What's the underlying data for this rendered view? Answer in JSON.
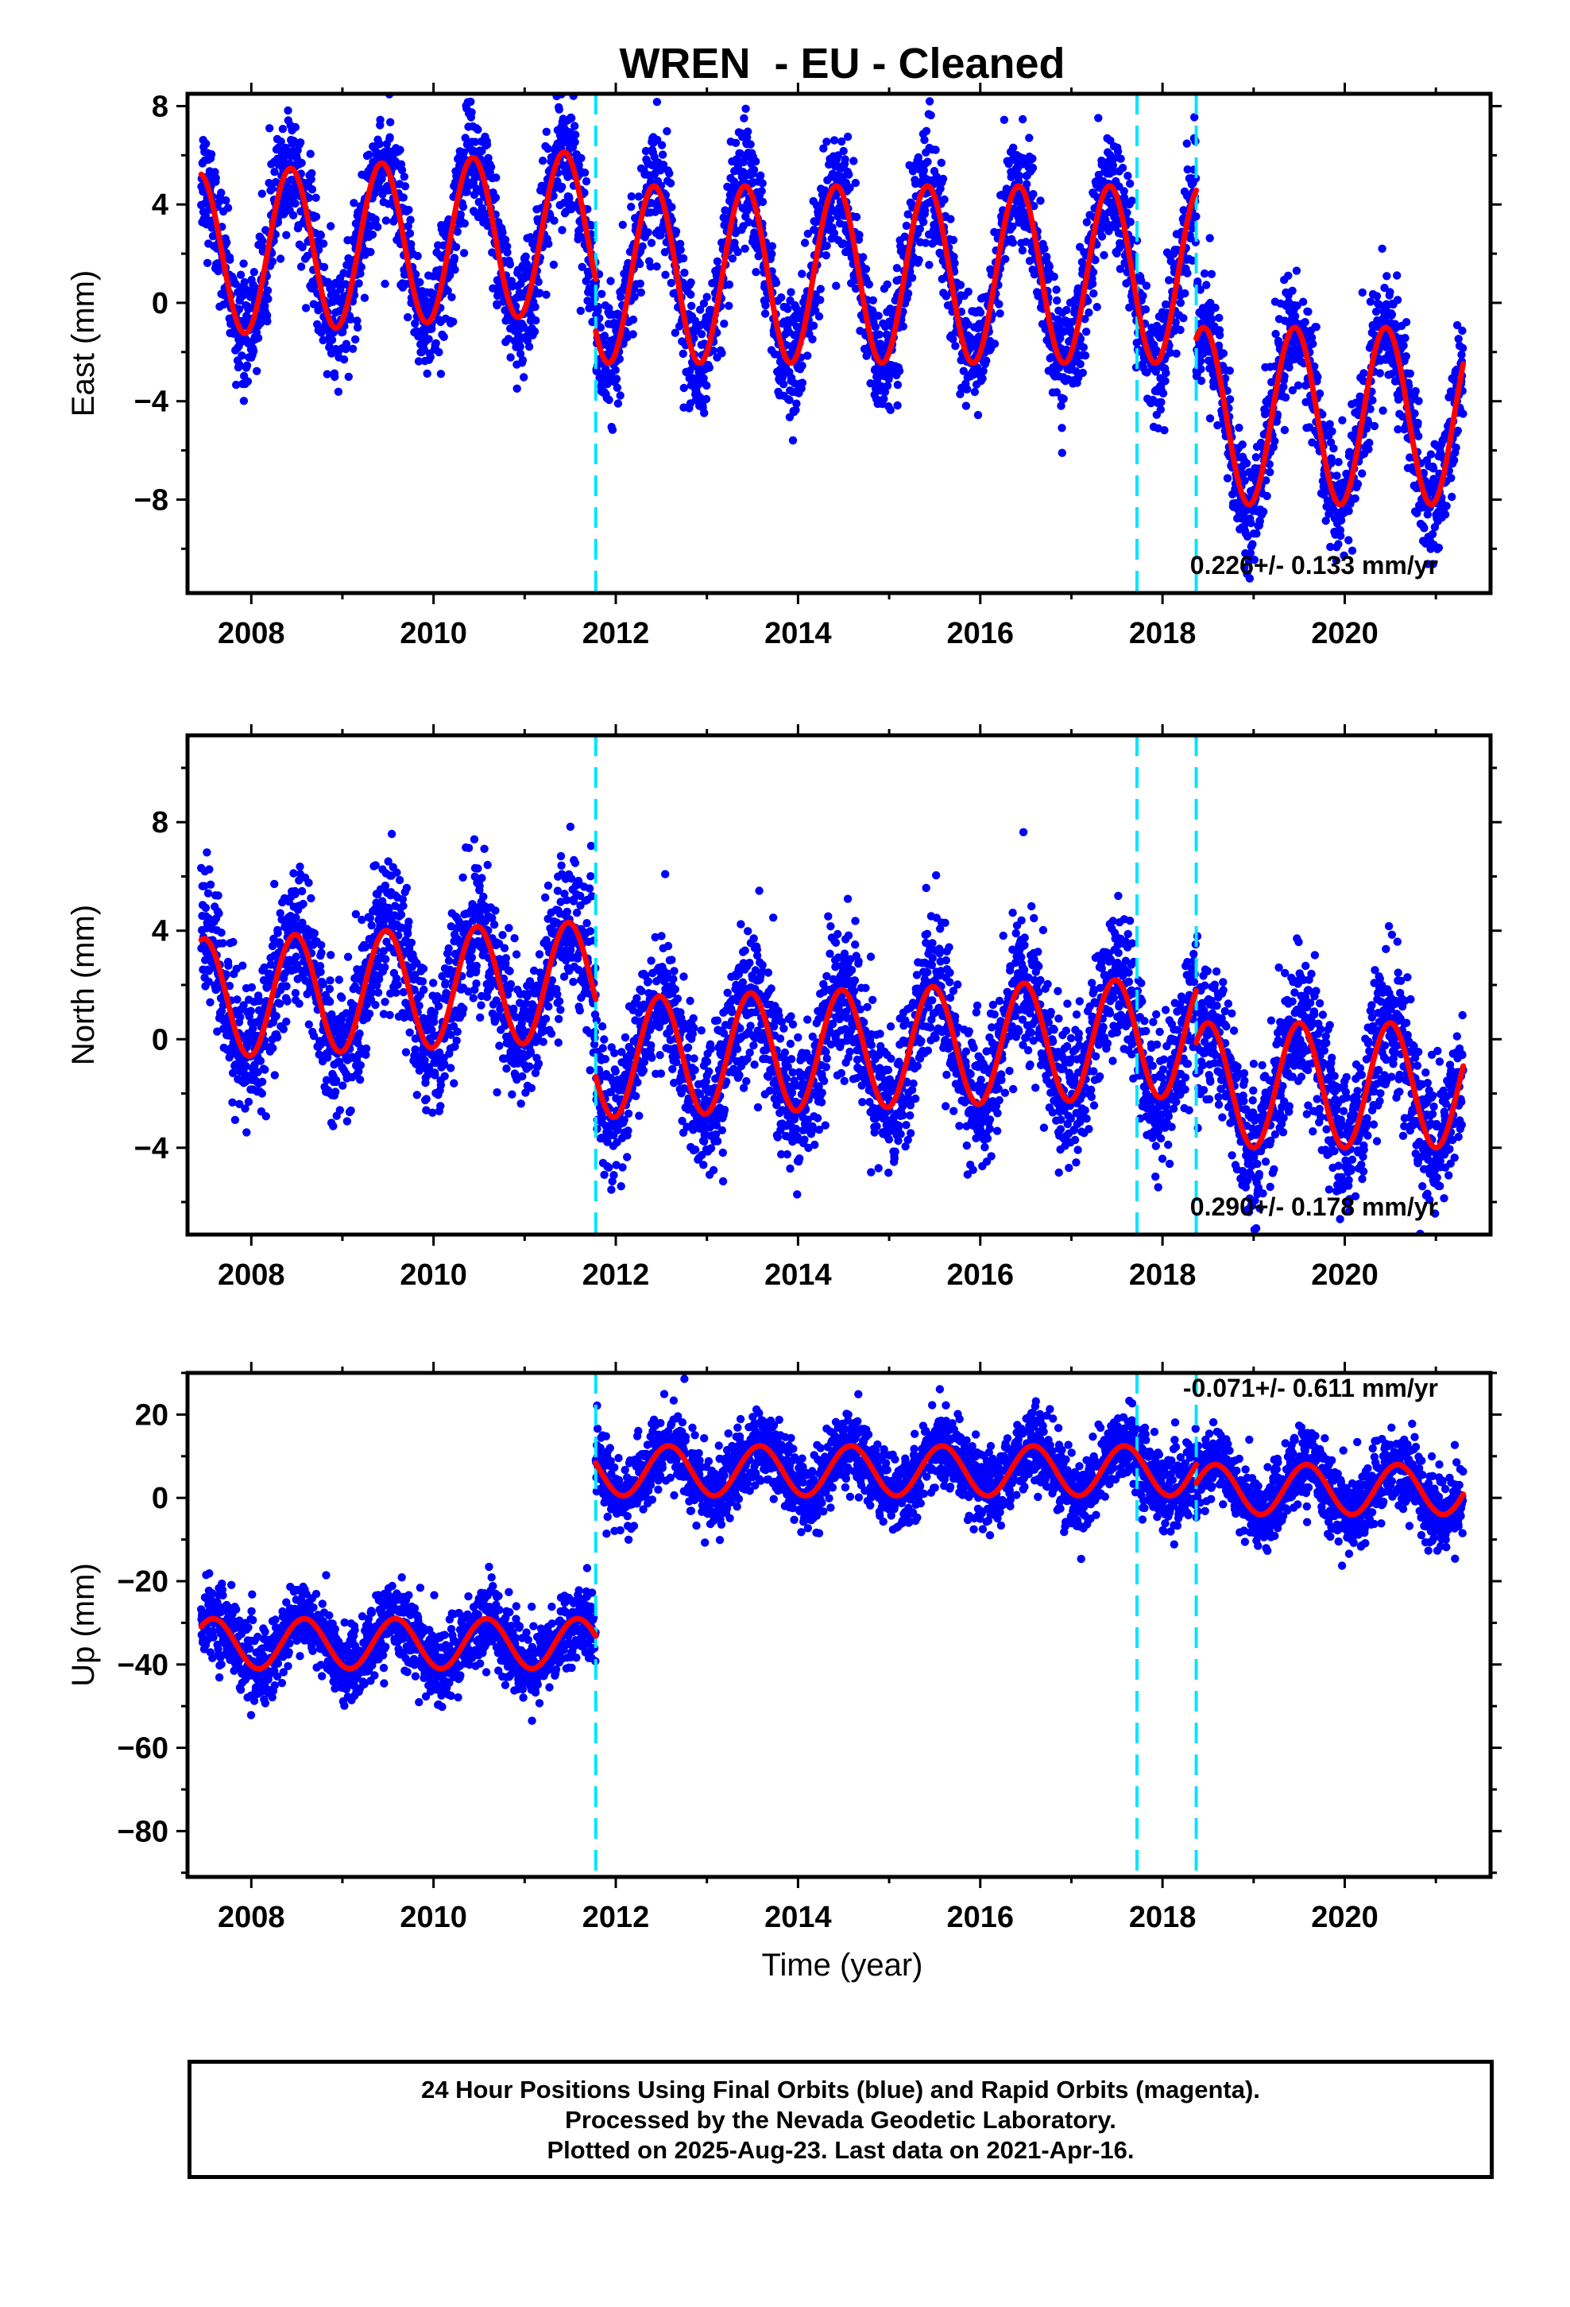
{
  "title": "WREN  - EU - Cleaned",
  "xlabel": "Time (year)",
  "colors": {
    "points": "#0000ff",
    "fit": "#ff0000",
    "offset_lines": "#00e5ff",
    "frame": "#000000"
  },
  "footer": {
    "line1": "24 Hour Positions Using Final Orbits (blue) and Rapid Orbits (magenta).",
    "line2": "Processed by the Nevada Geodetic Laboratory.",
    "line3": "Plotted on 2025-Aug-23. Last data on 2021-Apr-16."
  },
  "chart_data": [
    {
      "type": "scatter",
      "ylabel": "East (mm)",
      "rate_label": "0.226+/- 0.133 mm/yr",
      "xlim": [
        2007.3,
        2021.6
      ],
      "ylim": [
        -11.8,
        8.5
      ],
      "xticks": [
        2008,
        2010,
        2012,
        2014,
        2016,
        2018,
        2020
      ],
      "yticks": [
        8,
        4,
        0,
        -4,
        -8
      ],
      "offset_lines_x": [
        2011.78,
        2017.72,
        2018.37
      ],
      "fit_series": {
        "name": "fit",
        "segments": [
          {
            "x_start": 2007.45,
            "x_end": 2011.78,
            "level": 1.95,
            "amp": 3.3,
            "peak": 0.43,
            "trend": 0.22
          },
          {
            "x_start": 2011.78,
            "x_end": 2018.37,
            "level": 1.15,
            "amp": 3.6,
            "peak": 0.42,
            "trend": 0.0
          },
          {
            "x_start": 2018.37,
            "x_end": 2021.3,
            "level": -4.6,
            "amp": 3.6,
            "peak": 0.45,
            "trend": 0.0
          }
        ]
      },
      "points_series": {
        "name": "Final Orbits",
        "scatter": 1.2
      }
    },
    {
      "type": "scatter",
      "ylabel": "North (mm)",
      "rate_label": "0.290+/- 0.178 mm/yr",
      "xlim": [
        2007.3,
        2021.6
      ],
      "ylim": [
        -7.2,
        11.2
      ],
      "xticks": [
        2008,
        2010,
        2012,
        2014,
        2016,
        2018,
        2020
      ],
      "yticks": [
        8,
        4,
        0,
        -4
      ],
      "offset_lines_x": [
        2011.78,
        2017.72,
        2018.37
      ],
      "fit_series": {
        "name": "fit",
        "segments": [
          {
            "x_start": 2007.45,
            "x_end": 2011.78,
            "level": 1.5,
            "amp": 2.2,
            "peak": 0.48,
            "trend": 0.15
          },
          {
            "x_start": 2011.78,
            "x_end": 2018.37,
            "level": -0.7,
            "amp": 2.2,
            "peak": 0.48,
            "trend": 0.12
          },
          {
            "x_start": 2018.37,
            "x_end": 2021.3,
            "level": -1.7,
            "amp": 2.3,
            "peak": 0.5,
            "trend": 0.0
          }
        ]
      },
      "points_series": {
        "name": "Final Orbits",
        "scatter": 1.3
      }
    },
    {
      "type": "scatter",
      "ylabel": "Up (mm)",
      "rate_label": "-0.071+/- 0.611 mm/yr",
      "xlim": [
        2007.3,
        2021.6
      ],
      "ylim": [
        -91,
        30
      ],
      "xticks": [
        2008,
        2010,
        2012,
        2014,
        2016,
        2018,
        2020
      ],
      "yticks": [
        20,
        0,
        -20,
        -40,
        -60,
        -80
      ],
      "offset_lines_x": [
        2011.78,
        2017.72,
        2018.37
      ],
      "fit_series": {
        "name": "fit",
        "segments": [
          {
            "x_start": 2007.45,
            "x_end": 2011.78,
            "level": -35,
            "amp": 6,
            "peak": 0.58,
            "trend": 0.0
          },
          {
            "x_start": 2011.78,
            "x_end": 2018.37,
            "level": 6.5,
            "amp": 6,
            "peak": 0.58,
            "trend": 0.0
          },
          {
            "x_start": 2018.37,
            "x_end": 2021.3,
            "level": 2.0,
            "amp": 6,
            "peak": 0.58,
            "trend": 0.0
          }
        ]
      },
      "points_series": {
        "name": "Final Orbits",
        "scatter": 4.5
      }
    }
  ]
}
